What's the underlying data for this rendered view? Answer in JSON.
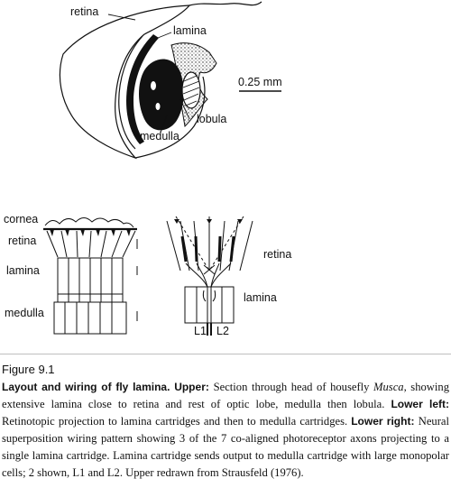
{
  "upper": {
    "labels": {
      "retina": "retina",
      "lamina": "lamina",
      "lobula": "lobula",
      "medulla": "medulla"
    },
    "scale": "0.25 mm"
  },
  "lower_left": {
    "labels": {
      "cornea": "cornea",
      "retina": "retina",
      "lamina": "lamina",
      "medulla": "medulla"
    }
  },
  "lower_right": {
    "labels": {
      "retina": "retina",
      "lamina": "lamina",
      "l1": "L1",
      "l2": "L2"
    }
  },
  "caption": {
    "figure_number": "Figure 9.1",
    "title": "Layout and wiring of fly lamina",
    "upper_label": "Upper",
    "upper_text_1": "Section through head of housefly ",
    "upper_species": "Musca",
    "upper_text_2": ", showing extensive lamina close to retina and rest of optic lobe, medulla then lobula.",
    "lower_left_label": "Lower left",
    "lower_left_text": "Retinotopic projection to lamina cartridges and then to medulla cartridges.",
    "lower_right_label": "Lower right",
    "lower_right_text": "Neural superposition wiring pattern showing 3 of the 7 co-aligned photoreceptor axons projecting to a single lamina cartridge. Lamina cartridge sends output to medulla cartridge with large monopolar cells; 2 shown, L1 and L2. Upper redrawn from Strausfeld (1976)."
  }
}
